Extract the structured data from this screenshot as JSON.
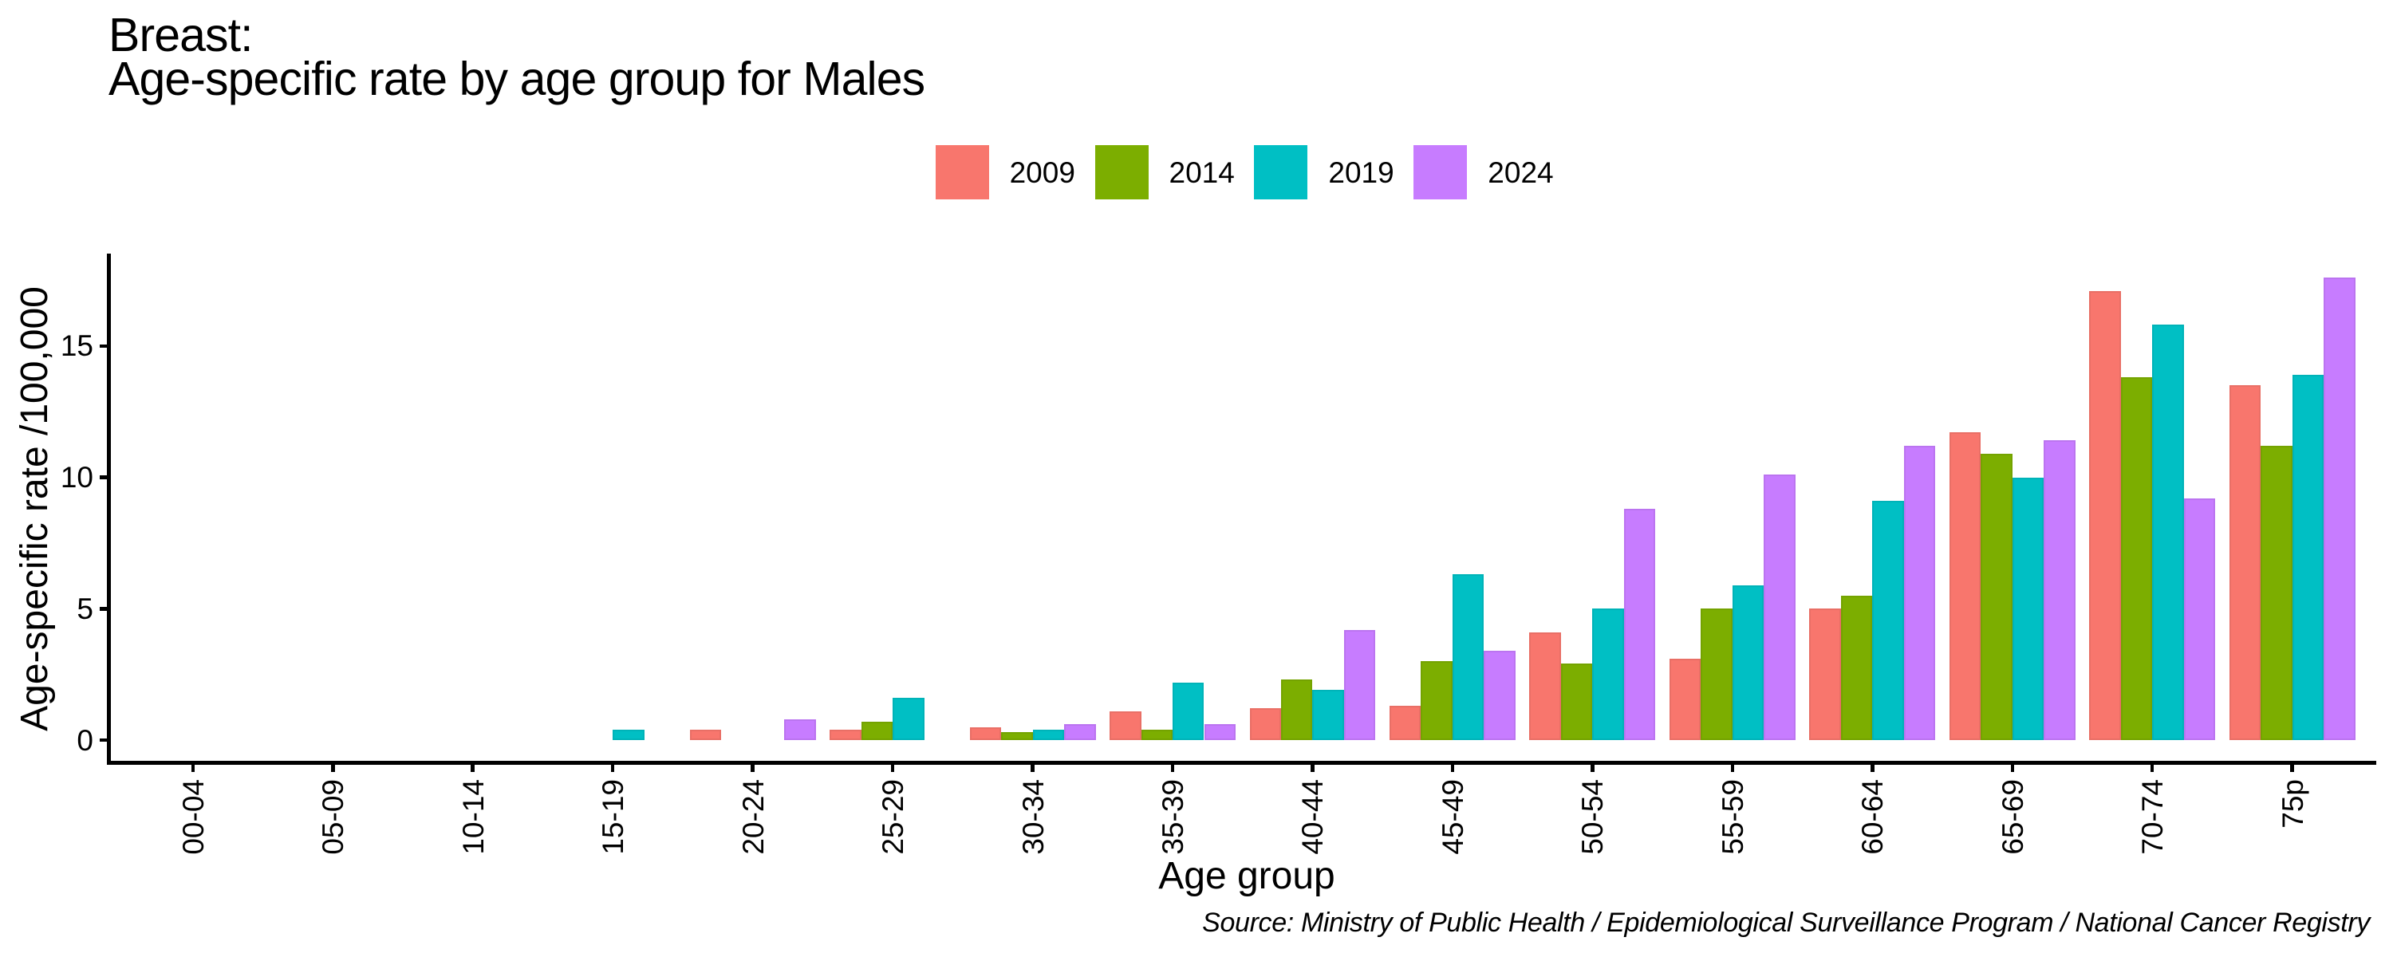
{
  "title": {
    "line1": "Breast:",
    "line2": "Age-specific rate by age group for Males"
  },
  "source_note": "Source: Ministry of Public Health / Epidemiological Surveillance Program / National Cancer Registry",
  "chart_data": {
    "type": "bar",
    "title": "Breast: Age-specific rate by age group for Males",
    "xlabel": "Age group",
    "ylabel": "Age-specific rate /100,000",
    "categories": [
      "00-04",
      "05-09",
      "10-14",
      "15-19",
      "20-24",
      "25-29",
      "30-34",
      "35-39",
      "40-44",
      "45-49",
      "50-54",
      "55-59",
      "60-64",
      "65-69",
      "70-74",
      "75p"
    ],
    "series": [
      {
        "name": "2009",
        "color": "#F8766D",
        "values": [
          0,
          0,
          0,
          0,
          0.4,
          0.4,
          0.5,
          1.1,
          1.2,
          1.3,
          4.1,
          3.1,
          5.0,
          11.7,
          17.1,
          13.5
        ]
      },
      {
        "name": "2014",
        "color": "#7CAE00",
        "values": [
          0,
          0,
          0,
          0,
          0,
          0.7,
          0.3,
          0.4,
          2.3,
          3.0,
          2.9,
          5.0,
          5.5,
          10.9,
          13.8,
          11.2
        ]
      },
      {
        "name": "2019",
        "color": "#00BFC4",
        "values": [
          0,
          0,
          0,
          0.4,
          0,
          1.6,
          0.4,
          2.2,
          1.9,
          6.3,
          5.0,
          5.9,
          9.1,
          10.0,
          15.8,
          13.9
        ]
      },
      {
        "name": "2024",
        "color": "#C77CFF",
        "values": [
          0,
          0,
          0,
          0,
          0.8,
          0,
          0.6,
          0.6,
          4.2,
          3.4,
          8.8,
          10.1,
          11.2,
          11.4,
          9.2,
          17.6
        ]
      }
    ],
    "yticks": [
      0,
      5,
      10,
      15
    ],
    "ylim": [
      -1.0,
      18.5
    ],
    "legend_position": "top",
    "grid": false
  }
}
